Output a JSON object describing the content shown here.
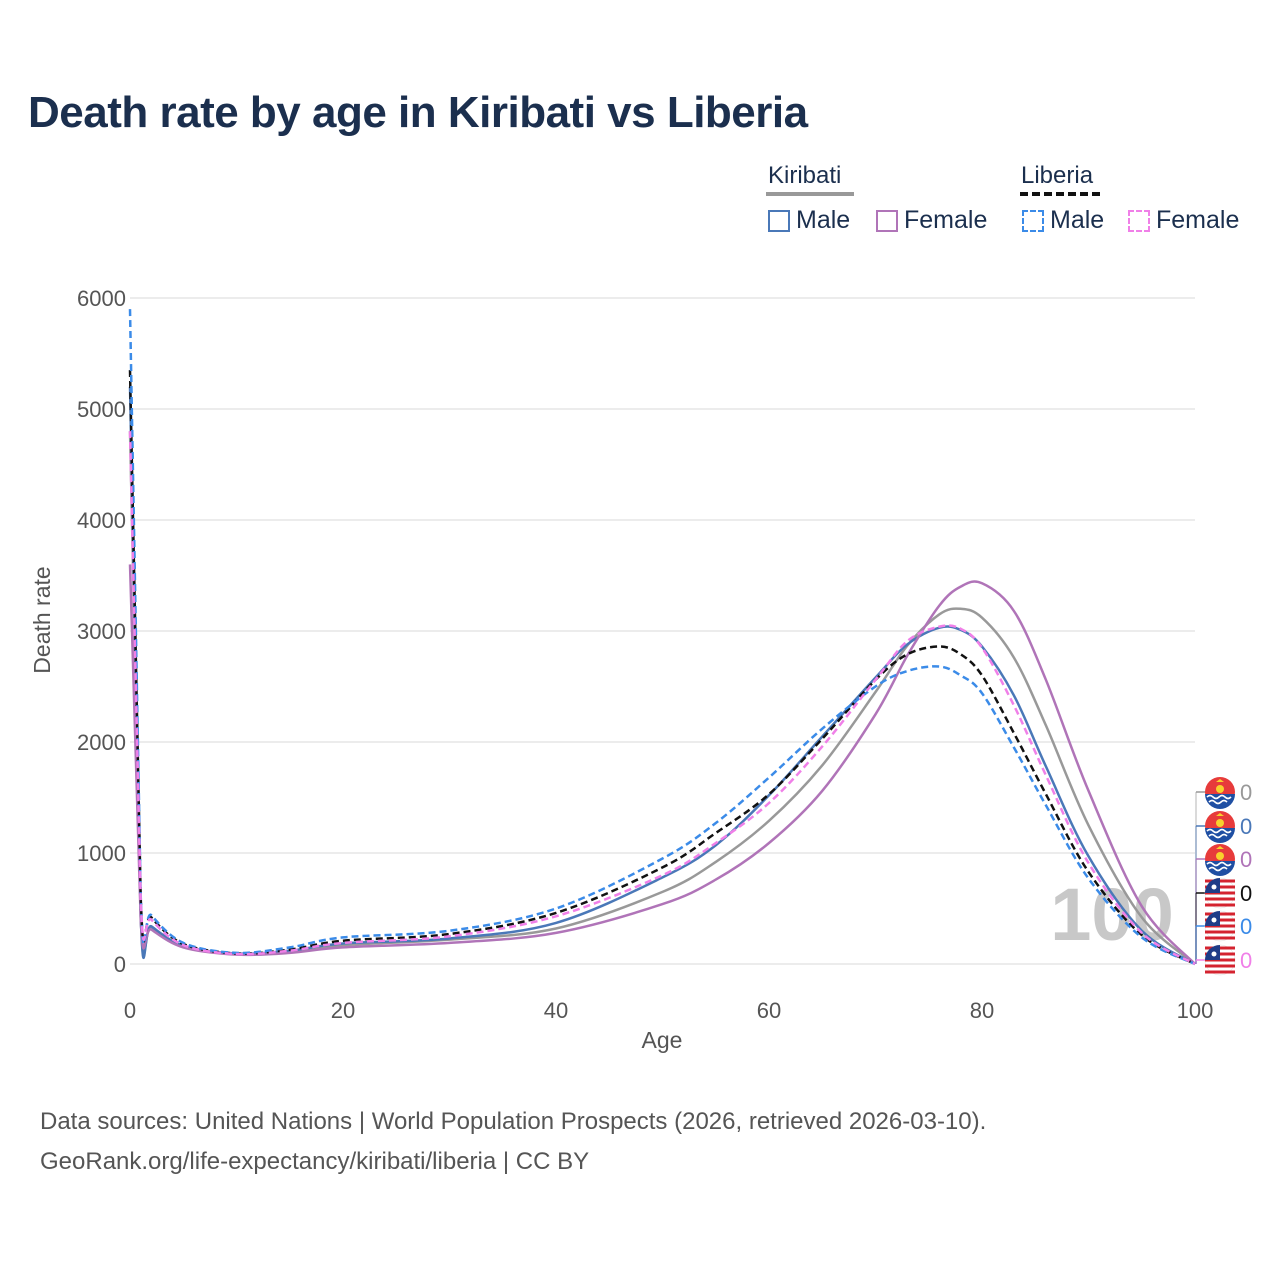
{
  "title": "Death rate by age in Kiribati vs Liberia",
  "legend": {
    "kiribati_label": "Kiribati",
    "liberia_label": "Liberia",
    "male_label": "Male",
    "female_label": "Female"
  },
  "source": {
    "line1": "Data sources: United Nations | World Population Prospects (2026, retrieved 2026-03-10).",
    "line2": "GeoRank.org/life-expectancy/kiribati/liberia | CC BY"
  },
  "colors": {
    "kiribati_total": "#999999",
    "kiribati_male": "#4a78b8",
    "kiribati_female": "#b074b8",
    "liberia_total": "#111111",
    "liberia_male": "#3b8be8",
    "liberia_female": "#f080e8",
    "grid": "#e6e6e6",
    "axis_text": "#555555"
  },
  "chart_data": {
    "type": "line",
    "title": "Death rate by age in Kiribati vs Liberia",
    "xlabel": "Age",
    "ylabel": "Death rate",
    "xlim": [
      0,
      100
    ],
    "ylim": [
      0,
      6000
    ],
    "xticks": [
      0,
      20,
      40,
      60,
      80,
      100
    ],
    "yticks": [
      0,
      1000,
      2000,
      3000,
      4000,
      5000,
      6000
    ],
    "current_age_label": "100",
    "end_values": [
      "0",
      "0",
      "0",
      "0",
      "0",
      "0"
    ],
    "series": [
      {
        "name": "Kiribati (total)",
        "country": "Kiribati",
        "sex": "Total",
        "dashed": false,
        "color": "#999999",
        "x": [
          0,
          1,
          2,
          5,
          10,
          15,
          20,
          30,
          40,
          50,
          55,
          60,
          65,
          70,
          73,
          76,
          78,
          80,
          83,
          86,
          90,
          95,
          100
        ],
        "y": [
          4800,
          420,
          330,
          160,
          90,
          110,
          170,
          220,
          320,
          650,
          920,
          1290,
          1790,
          2450,
          2870,
          3150,
          3200,
          3120,
          2760,
          2150,
          1250,
          420,
          0
        ]
      },
      {
        "name": "Kiribati Male",
        "country": "Kiribati",
        "sex": "Male",
        "dashed": false,
        "color": "#4a78b8",
        "x": [
          0,
          1,
          2,
          5,
          10,
          15,
          20,
          30,
          40,
          50,
          55,
          60,
          65,
          70,
          73,
          76,
          78,
          80,
          83,
          86,
          90,
          95,
          100
        ],
        "y": [
          5200,
          430,
          340,
          165,
          95,
          120,
          185,
          230,
          370,
          780,
          1070,
          1520,
          2050,
          2580,
          2880,
          3030,
          3010,
          2860,
          2420,
          1780,
          970,
          300,
          0
        ]
      },
      {
        "name": "Kiribati Female",
        "country": "Kiribati",
        "sex": "Female",
        "dashed": false,
        "color": "#b074b8",
        "x": [
          0,
          1,
          2,
          5,
          10,
          15,
          20,
          30,
          40,
          50,
          55,
          60,
          65,
          70,
          73,
          76,
          78,
          80,
          83,
          86,
          90,
          95,
          100
        ],
        "y": [
          3600,
          400,
          310,
          150,
          85,
          100,
          150,
          190,
          280,
          540,
          760,
          1090,
          1560,
          2250,
          2780,
          3230,
          3400,
          3430,
          3180,
          2560,
          1560,
          520,
          0
        ]
      },
      {
        "name": "Liberia (total)",
        "country": "Liberia",
        "sex": "Total",
        "dashed": true,
        "color": "#111111",
        "x": [
          0,
          1,
          2,
          5,
          10,
          15,
          20,
          30,
          40,
          50,
          55,
          60,
          65,
          70,
          73,
          76,
          78,
          80,
          83,
          86,
          90,
          95,
          100
        ],
        "y": [
          5350,
          600,
          420,
          180,
          95,
          130,
          210,
          270,
          460,
          870,
          1180,
          1530,
          2030,
          2560,
          2790,
          2860,
          2790,
          2600,
          2080,
          1530,
          830,
          260,
          0
        ]
      },
      {
        "name": "Liberia Male",
        "country": "Liberia",
        "sex": "Male",
        "dashed": true,
        "color": "#3b8be8",
        "x": [
          0,
          1,
          2,
          5,
          10,
          15,
          20,
          30,
          40,
          50,
          55,
          60,
          65,
          70,
          73,
          76,
          78,
          80,
          83,
          86,
          90,
          95,
          100
        ],
        "y": [
          5900,
          620,
          440,
          190,
          100,
          150,
          240,
          300,
          500,
          950,
          1270,
          1680,
          2120,
          2500,
          2640,
          2680,
          2600,
          2440,
          1950,
          1430,
          770,
          240,
          0
        ]
      },
      {
        "name": "Liberia Female",
        "country": "Liberia",
        "sex": "Female",
        "dashed": true,
        "color": "#f080e8",
        "x": [
          0,
          1,
          2,
          5,
          10,
          15,
          20,
          30,
          40,
          50,
          55,
          60,
          65,
          70,
          73,
          76,
          78,
          80,
          83,
          86,
          90,
          95,
          100
        ],
        "y": [
          4800,
          580,
          400,
          170,
          90,
          120,
          190,
          250,
          430,
          800,
          1090,
          1450,
          1960,
          2560,
          2910,
          3040,
          3020,
          2850,
          2330,
          1700,
          910,
          280,
          0
        ]
      }
    ]
  }
}
